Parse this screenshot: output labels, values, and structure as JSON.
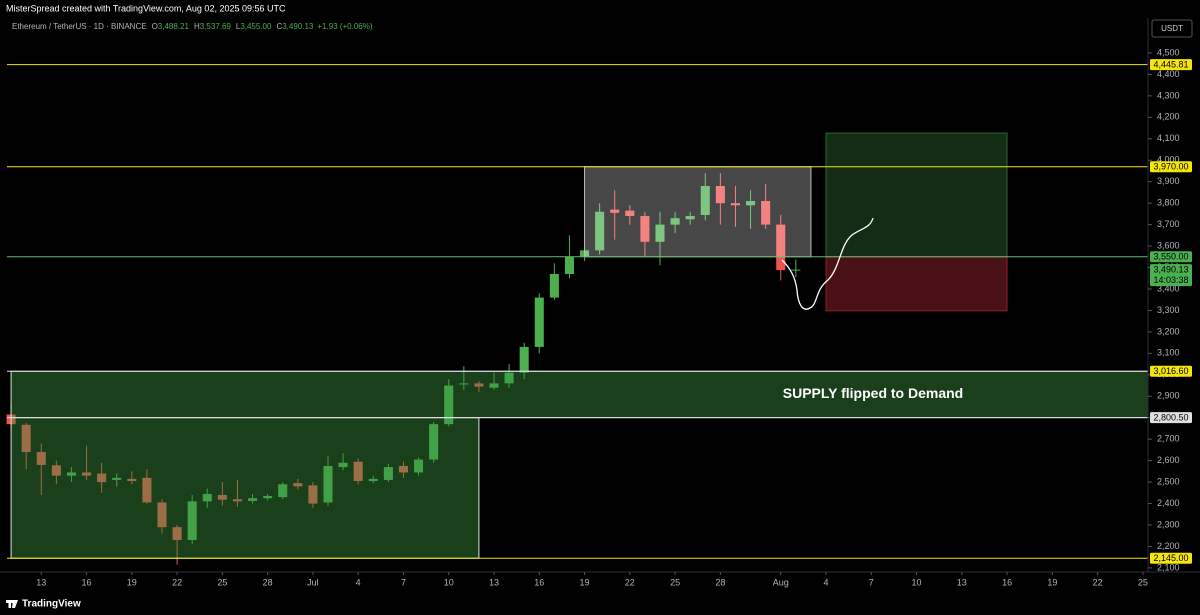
{
  "header": {
    "attribution": "MisterSpread created with TradingView.com, Aug 02, 2025 09:56 UTC",
    "symbol": "Ethereum / TetherUS · 1D · BINANCE",
    "legend": [
      {
        "key": "O",
        "value": "3,488.21"
      },
      {
        "key": "H",
        "value": "3,537.69"
      },
      {
        "key": "L",
        "value": "3,455.00"
      },
      {
        "key": "C",
        "value": "3,490.13"
      }
    ],
    "change": "+1.93 (+0.06%)",
    "currency": "USDT"
  },
  "footer": {
    "brand": "TradingView"
  },
  "chart_data": {
    "type": "candlestick",
    "x": [
      "2025-06-11",
      "2025-06-12",
      "2025-06-13",
      "2025-06-14",
      "2025-06-15",
      "2025-06-16",
      "2025-06-17",
      "2025-06-18",
      "2025-06-19",
      "2025-06-20",
      "2025-06-21",
      "2025-06-22",
      "2025-06-23",
      "2025-06-24",
      "2025-06-25",
      "2025-06-26",
      "2025-06-27",
      "2025-06-28",
      "2025-06-29",
      "2025-06-30",
      "2025-07-01",
      "2025-07-02",
      "2025-07-03",
      "2025-07-04",
      "2025-07-05",
      "2025-07-06",
      "2025-07-07",
      "2025-07-08",
      "2025-07-09",
      "2025-07-10",
      "2025-07-11",
      "2025-07-12",
      "2025-07-13",
      "2025-07-14",
      "2025-07-15",
      "2025-07-16",
      "2025-07-17",
      "2025-07-18",
      "2025-07-19",
      "2025-07-20",
      "2025-07-21",
      "2025-07-22",
      "2025-07-23",
      "2025-07-24",
      "2025-07-25",
      "2025-07-26",
      "2025-07-27",
      "2025-07-28",
      "2025-07-29",
      "2025-07-30",
      "2025-07-31",
      "2025-08-01",
      "2025-08-02"
    ],
    "open": [
      2815,
      2767,
      2640,
      2578,
      2530,
      2545,
      2540,
      2510,
      2515,
      2520,
      2405,
      2290,
      2230,
      2410,
      2440,
      2420,
      2412,
      2425,
      2430,
      2495,
      2485,
      2405,
      2570,
      2595,
      2505,
      2510,
      2575,
      2545,
      2605,
      2770,
      2955,
      2960,
      2940,
      2960,
      3010,
      3130,
      3360,
      3470,
      3550,
      3580,
      3770,
      3765,
      3740,
      3620,
      3700,
      3725,
      3745,
      3880,
      3800,
      3790,
      3810,
      3700,
      3488.21
    ],
    "high": [
      2860,
      2775,
      2680,
      2600,
      2570,
      2670,
      2590,
      2540,
      2550,
      2560,
      2420,
      2300,
      2440,
      2470,
      2500,
      2510,
      2445,
      2445,
      2500,
      2515,
      2500,
      2620,
      2635,
      2610,
      2530,
      2585,
      2595,
      2615,
      2780,
      2980,
      3040,
      2970,
      3010,
      3050,
      3150,
      3380,
      3520,
      3650,
      3600,
      3800,
      3860,
      3790,
      3760,
      3760,
      3760,
      3760,
      3940,
      3940,
      3880,
      3860,
      3890,
      3745,
      3537.69
    ],
    "low": [
      2750,
      2560,
      2440,
      2490,
      2500,
      2510,
      2450,
      2480,
      2490,
      2400,
      2260,
      2115,
      2210,
      2380,
      2390,
      2385,
      2400,
      2415,
      2420,
      2465,
      2380,
      2390,
      2555,
      2490,
      2495,
      2500,
      2520,
      2530,
      2590,
      2760,
      2930,
      2920,
      2930,
      2940,
      2980,
      3100,
      3350,
      3450,
      3530,
      3560,
      3630,
      3700,
      3550,
      3510,
      3660,
      3700,
      3720,
      3700,
      3690,
      3680,
      3680,
      3440,
      3455
    ],
    "close": [
      2770,
      2640,
      2580,
      2530,
      2545,
      2530,
      2500,
      2520,
      2505,
      2405,
      2290,
      2230,
      2410,
      2445,
      2418,
      2410,
      2425,
      2435,
      2490,
      2480,
      2400,
      2575,
      2590,
      2505,
      2515,
      2570,
      2545,
      2605,
      2770,
      2950,
      2960,
      2945,
      2960,
      3010,
      3130,
      3360,
      3470,
      3550,
      3580,
      3760,
      3755,
      3740,
      3620,
      3700,
      3730,
      3740,
      3880,
      3800,
      3790,
      3810,
      3700,
      3488,
      3490.13
    ],
    "up_color": "#4caf50",
    "down_color": "#ef5350",
    "xlim": [
      "2025-06-10",
      "2025-08-26"
    ],
    "xticks": [
      {
        "value": "2025-06-13",
        "label": "13"
      },
      {
        "value": "2025-06-16",
        "label": "16"
      },
      {
        "value": "2025-06-19",
        "label": "19"
      },
      {
        "value": "2025-06-22",
        "label": "22"
      },
      {
        "value": "2025-06-25",
        "label": "25"
      },
      {
        "value": "2025-06-28",
        "label": "28"
      },
      {
        "value": "2025-07-01",
        "label": "Jul"
      },
      {
        "value": "2025-07-04",
        "label": "4"
      },
      {
        "value": "2025-07-07",
        "label": "7"
      },
      {
        "value": "2025-07-10",
        "label": "10"
      },
      {
        "value": "2025-07-13",
        "label": "13"
      },
      {
        "value": "2025-07-16",
        "label": "16"
      },
      {
        "value": "2025-07-19",
        "label": "19"
      },
      {
        "value": "2025-07-22",
        "label": "22"
      },
      {
        "value": "2025-07-25",
        "label": "25"
      },
      {
        "value": "2025-07-28",
        "label": "28"
      },
      {
        "value": "2025-08-01",
        "label": "Aug"
      },
      {
        "value": "2025-08-04",
        "label": "4"
      },
      {
        "value": "2025-08-07",
        "label": "7"
      },
      {
        "value": "2025-08-10",
        "label": "10"
      },
      {
        "value": "2025-08-13",
        "label": "13"
      },
      {
        "value": "2025-08-16",
        "label": "16"
      },
      {
        "value": "2025-08-19",
        "label": "19"
      },
      {
        "value": "2025-08-22",
        "label": "22"
      },
      {
        "value": "2025-08-25",
        "label": "25"
      }
    ],
    "ylim": [
      2081,
      4663
    ],
    "yticks": [
      {
        "value": 2100,
        "label": "2,100"
      },
      {
        "value": 2200,
        "label": "2,200"
      },
      {
        "value": 2300,
        "label": "2,300"
      },
      {
        "value": 2400,
        "label": "2,400"
      },
      {
        "value": 2500,
        "label": "2,500"
      },
      {
        "value": 2600,
        "label": "2,600"
      },
      {
        "value": 2700,
        "label": "2,700"
      },
      {
        "value": 2800,
        "label": "2,800"
      },
      {
        "value": 2900,
        "label": "2,900"
      },
      {
        "value": 3000,
        "label": "3,000"
      },
      {
        "value": 3100,
        "label": "3,100"
      },
      {
        "value": 3200,
        "label": "3,200"
      },
      {
        "value": 3300,
        "label": "3,300"
      },
      {
        "value": 3400,
        "label": "3,400"
      },
      {
        "value": 3500,
        "label": "3,500"
      },
      {
        "value": 3600,
        "label": "3,600"
      },
      {
        "value": 3700,
        "label": "3,700"
      },
      {
        "value": 3800,
        "label": "3,800"
      },
      {
        "value": 3900,
        "label": "3,900"
      },
      {
        "value": 4000,
        "label": "4,000"
      },
      {
        "value": 4100,
        "label": "4,100"
      },
      {
        "value": 4200,
        "label": "4,200"
      },
      {
        "value": 4300,
        "label": "4,300"
      },
      {
        "value": 4400,
        "label": "4,400"
      },
      {
        "value": 4500,
        "label": "4,500"
      }
    ],
    "grid": false,
    "zones": [
      {
        "x": [
          "2025-06-11",
          "2025-07-12"
        ],
        "y": [
          2145,
          2800.5
        ],
        "color": "rgba(56,142,60,0.45)",
        "border": "#e0e0e0"
      },
      {
        "x": [
          "2025-06-11",
          "2025-08-26"
        ],
        "y": [
          2800.5,
          3016.6
        ],
        "color": "rgba(56,142,60,0.45)",
        "border": "#e0e0e0",
        "label": "SUPPLY flipped to Demand"
      },
      {
        "x": [
          "2025-07-19",
          "2025-08-03"
        ],
        "y": [
          3550,
          3970
        ],
        "color": "rgba(255,255,255,0.28)",
        "border": "#bdbdbd"
      }
    ],
    "position": {
      "x": [
        "2025-08-04",
        "2025-08-16"
      ],
      "entry": 3550,
      "target": 4127,
      "stop": 3298,
      "target_color": "rgba(76,175,80,0.25)",
      "stop_color": "rgba(242,54,69,0.3)"
    },
    "levels": [
      {
        "value": 4445.81,
        "label": "4,445.81",
        "color": "#f5e50b",
        "line_color": "#f5e50b"
      },
      {
        "value": 3970,
        "label": "3,970.00",
        "color": "#f5e50b",
        "line_color": "#f5e50b"
      },
      {
        "value": 3550,
        "label": "3,550.00",
        "color": "#4caf50",
        "line_color": "#66bb6a"
      },
      {
        "value": 3016.6,
        "label": "3,016.60",
        "color": "#f5e50b",
        "line_color": "#e0e0e0"
      },
      {
        "value": 2800.5,
        "label": "2,800.50",
        "color": "#e0e0e0",
        "line_color": "#e0e0e0"
      },
      {
        "value": 2145,
        "label": "2,145.00",
        "color": "#f5e50b",
        "line_color": "#f5e50b"
      }
    ],
    "last_price": {
      "label": "3,490.13",
      "countdown": "14:03:38",
      "color": "#4caf50"
    }
  }
}
